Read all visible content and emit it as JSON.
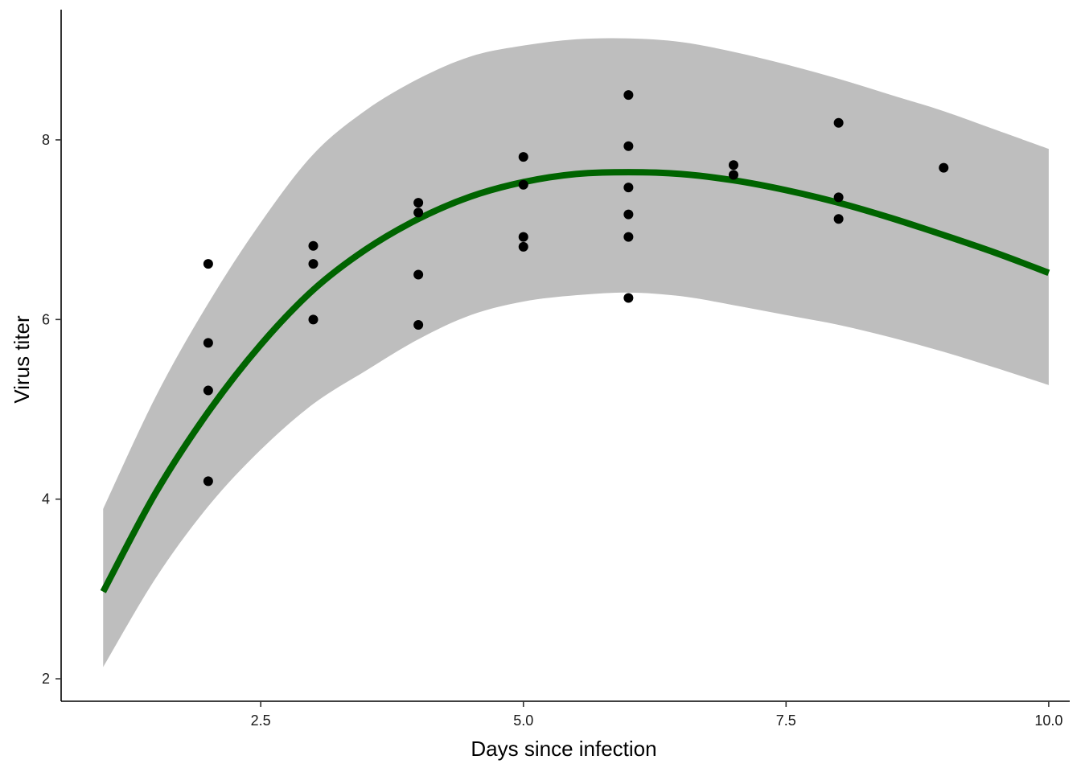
{
  "chart_data": {
    "type": "scatter",
    "title": "",
    "xlabel": "Days since infection",
    "ylabel": "Virus titer",
    "xlim": [
      0.6,
      10.2
    ],
    "ylim": [
      1.75,
      9.45
    ],
    "x_ticks": [
      2.5,
      5.0,
      7.5,
      10.0
    ],
    "x_tick_labels": [
      "2.5",
      "5.0",
      "7.5",
      "10.0"
    ],
    "y_ticks": [
      2,
      4,
      6,
      8
    ],
    "y_tick_labels": [
      "2",
      "4",
      "6",
      "8"
    ],
    "grid": false,
    "legend": "none",
    "colors": {
      "points": "#000000",
      "fit_line": "#006400",
      "confidence_band": "#bebebe",
      "axis": "#000000"
    },
    "points": [
      {
        "x": 2,
        "y": 6.62
      },
      {
        "x": 2,
        "y": 5.74
      },
      {
        "x": 2,
        "y": 5.21
      },
      {
        "x": 2,
        "y": 4.2
      },
      {
        "x": 3,
        "y": 6.82
      },
      {
        "x": 3,
        "y": 6.62
      },
      {
        "x": 3,
        "y": 6.0
      },
      {
        "x": 4,
        "y": 7.3
      },
      {
        "x": 4,
        "y": 7.19
      },
      {
        "x": 4,
        "y": 6.5
      },
      {
        "x": 4,
        "y": 5.94
      },
      {
        "x": 5,
        "y": 7.81
      },
      {
        "x": 5,
        "y": 7.5
      },
      {
        "x": 5,
        "y": 6.92
      },
      {
        "x": 5,
        "y": 6.81
      },
      {
        "x": 6,
        "y": 8.5
      },
      {
        "x": 6,
        "y": 7.93
      },
      {
        "x": 6,
        "y": 7.47
      },
      {
        "x": 6,
        "y": 7.17
      },
      {
        "x": 6,
        "y": 6.92
      },
      {
        "x": 6,
        "y": 6.24
      },
      {
        "x": 7,
        "y": 7.72
      },
      {
        "x": 7,
        "y": 7.61
      },
      {
        "x": 8,
        "y": 8.19
      },
      {
        "x": 8,
        "y": 7.36
      },
      {
        "x": 8,
        "y": 7.12
      },
      {
        "x": 9,
        "y": 7.69
      }
    ],
    "fit": {
      "x": [
        1.0,
        1.5,
        2.0,
        2.5,
        3.0,
        3.5,
        4.0,
        4.5,
        5.0,
        5.5,
        6.0,
        6.5,
        7.0,
        7.5,
        8.0,
        8.5,
        9.0,
        9.5,
        10.0
      ],
      "y": [
        2.97,
        4.07,
        4.97,
        5.72,
        6.33,
        6.78,
        7.12,
        7.37,
        7.53,
        7.62,
        7.64,
        7.62,
        7.55,
        7.44,
        7.3,
        7.13,
        6.94,
        6.74,
        6.52
      ],
      "lower": [
        2.13,
        3.12,
        3.92,
        4.55,
        5.06,
        5.43,
        5.78,
        6.05,
        6.2,
        6.27,
        6.3,
        6.26,
        6.16,
        6.05,
        5.94,
        5.8,
        5.64,
        5.46,
        5.27
      ],
      "upper": [
        3.89,
        5.14,
        6.18,
        7.08,
        7.84,
        8.33,
        8.68,
        8.93,
        9.05,
        9.12,
        9.13,
        9.09,
        8.98,
        8.84,
        8.68,
        8.5,
        8.32,
        8.11,
        7.9
      ]
    }
  }
}
